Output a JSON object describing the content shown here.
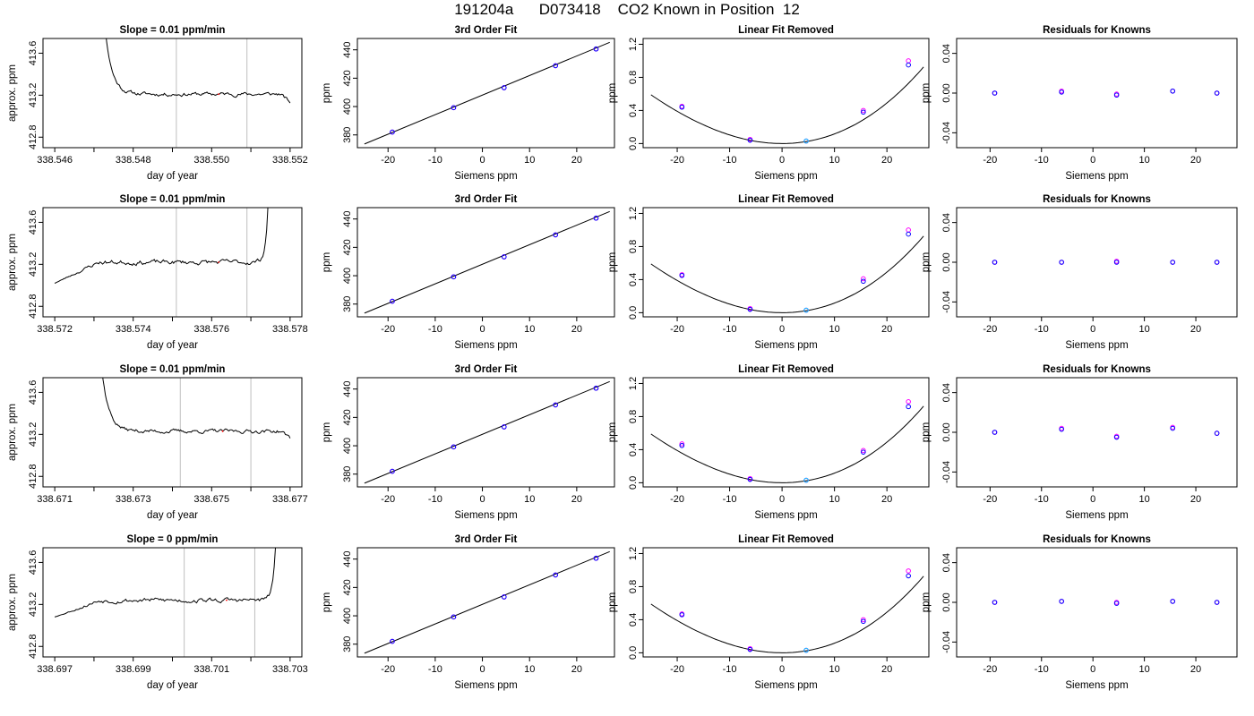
{
  "page_title": "191204a      D073418    CO2 Known in Position  12",
  "colors": {
    "trace": "#000000",
    "guide_line": "#bebebe",
    "std_point_blue": "#0000ff",
    "std_point_magenta": "#ff00ff",
    "std_point_cyan": "#00bfff",
    "marker_red": "#ff0000"
  },
  "chart_data": [
    {
      "type": "line",
      "row": 0,
      "col": 0,
      "title": "Slope =  0.01  ppm/min",
      "xlabel": "day of year",
      "ylabel": "approx. ppm",
      "xlim": [
        338.5457,
        338.5523
      ],
      "ylim": [
        412.7,
        413.74
      ],
      "xticks": [
        338.546,
        338.547,
        338.548,
        338.549,
        338.55,
        338.551,
        338.552
      ],
      "xtick_labels": [
        "338.546",
        "",
        "338.548",
        "",
        "338.550",
        "",
        "338.552"
      ],
      "yticks": [
        412.8,
        413.2,
        413.6
      ],
      "ytick_labels": [
        "412.8",
        "413.2",
        "413.6"
      ],
      "vlines": [
        338.5491,
        338.5509
      ],
      "trace": {
        "x_start": 338.547,
        "x_end": 338.552,
        "level": 413.21,
        "noise": 0.012,
        "spike_start": true,
        "spike_end": false,
        "end_tail": -0.08,
        "seed": 11
      }
    },
    {
      "type": "scatter",
      "row": 0,
      "col": 1,
      "title": "3rd Order Fit",
      "xlabel": "Siemens ppm",
      "ylabel": "ppm",
      "xlim": [
        -26.5,
        28
      ],
      "ylim": [
        371,
        448
      ],
      "xticks": [
        -20,
        -10,
        0,
        10,
        20
      ],
      "xtick_labels": [
        "-20",
        "-10",
        "0",
        "10",
        "20"
      ],
      "yticks": [
        380,
        400,
        420,
        440
      ],
      "ytick_labels": [
        "380",
        "400",
        "420",
        "440"
      ],
      "fit_line": {
        "x": [
          -25,
          27
        ],
        "y": [
          373.6,
          445.3
        ]
      },
      "points_blue": {
        "x": [
          -19.1,
          -6.1,
          4.6,
          15.5,
          24.1
        ],
        "y": [
          382.0,
          399.2,
          413.3,
          428.8,
          440.6
        ]
      },
      "points_magenta": {
        "x": [
          -19.1,
          -6.1,
          4.6,
          15.5,
          24.1
        ],
        "y": [
          382.0,
          399.2,
          413.3,
          428.8,
          440.6
        ]
      }
    },
    {
      "type": "scatter",
      "row": 0,
      "col": 2,
      "title": "Linear Fit Removed",
      "xlabel": "Siemens ppm",
      "ylabel": "ppm",
      "xlim": [
        -26.5,
        28
      ],
      "ylim": [
        -0.05,
        1.27
      ],
      "xticks": [
        -20,
        -10,
        0,
        10,
        20
      ],
      "xtick_labels": [
        "-20",
        "-10",
        "0",
        "10",
        "20"
      ],
      "yticks": [
        0,
        0.4,
        0.8,
        1.2
      ],
      "ytick_labels": [
        "0.0",
        "0.4",
        "0.8",
        "1.2"
      ],
      "curve": {
        "a": 0.0011,
        "b": 0.0124,
        "c": 6.3e-06,
        "x_from": -25,
        "x_to": 27
      },
      "points_blue": {
        "x": [
          -19.1,
          -6.1,
          4.6,
          15.5,
          24.1
        ],
        "y": [
          0.44,
          0.04,
          0.03,
          0.38,
          0.95
        ]
      },
      "points_magenta": {
        "x": [
          -19.1,
          -6.1,
          4.6,
          15.5,
          24.1
        ],
        "y": [
          0.45,
          0.05,
          0.03,
          0.4,
          1.0
        ]
      }
    },
    {
      "type": "scatter",
      "row": 0,
      "col": 3,
      "title": "Residuals for Knowns",
      "xlabel": "Siemens ppm",
      "ylabel": "ppm",
      "xlim": [
        -26.5,
        28
      ],
      "ylim": [
        -0.055,
        0.055
      ],
      "xticks": [
        -20,
        -10,
        0,
        10,
        20
      ],
      "xtick_labels": [
        "-20",
        "-10",
        "0",
        "10",
        "20"
      ],
      "yticks": [
        -0.04,
        0,
        0.04
      ],
      "ytick_labels": [
        "-0.04",
        "0.00",
        "0.04"
      ],
      "points_blue": {
        "x": [
          -19.1,
          -6.1,
          4.6,
          15.5,
          24.1
        ],
        "y": [
          0.0,
          0.001,
          -0.002,
          0.002,
          0.0
        ]
      },
      "points_magenta": {
        "x": [
          -19.1,
          -6.1,
          4.6,
          15.5,
          24.1
        ],
        "y": [
          0.0,
          0.002,
          -0.001,
          0.002,
          0.0
        ]
      }
    },
    {
      "type": "line",
      "row": 1,
      "col": 0,
      "title": "Slope =  0.01  ppm/min",
      "xlabel": "day of year",
      "ylabel": "approx. ppm",
      "xlim": [
        338.5717,
        338.5783
      ],
      "ylim": [
        412.7,
        413.74
      ],
      "xticks": [
        338.572,
        338.573,
        338.574,
        338.575,
        338.576,
        338.577,
        338.578
      ],
      "xtick_labels": [
        "338.572",
        "",
        "338.574",
        "",
        "338.576",
        "",
        "338.578"
      ],
      "yticks": [
        412.8,
        413.2,
        413.6
      ],
      "ytick_labels": [
        "412.8",
        "413.2",
        "413.6"
      ],
      "vlines": [
        338.5751,
        338.5769
      ],
      "trace": {
        "x_start": 338.572,
        "x_end": 338.5776,
        "level": 413.22,
        "noise": 0.015,
        "spike_start": false,
        "spike_end": true,
        "start_level": 413.02,
        "seed": 23
      }
    },
    {
      "type": "scatter",
      "row": 1,
      "col": 1,
      "title": "3rd Order Fit",
      "xlabel": "Siemens ppm",
      "ylabel": "ppm",
      "xlim": [
        -26.5,
        28
      ],
      "ylim": [
        371,
        448
      ],
      "xticks": [
        -20,
        -10,
        0,
        10,
        20
      ],
      "xtick_labels": [
        "-20",
        "-10",
        "0",
        "10",
        "20"
      ],
      "yticks": [
        380,
        400,
        420,
        440
      ],
      "ytick_labels": [
        "380",
        "400",
        "420",
        "440"
      ],
      "fit_line": {
        "x": [
          -25,
          27
        ],
        "y": [
          373.6,
          445.3
        ]
      },
      "points_blue": {
        "x": [
          -19.1,
          -6.1,
          4.6,
          15.5,
          24.1
        ],
        "y": [
          382.0,
          399.2,
          413.3,
          428.8,
          440.6
        ]
      },
      "points_magenta": {
        "x": [
          -19.1,
          -6.1,
          4.6,
          15.5,
          24.1
        ],
        "y": [
          382.0,
          399.2,
          413.3,
          428.8,
          440.6
        ]
      }
    },
    {
      "type": "scatter",
      "row": 1,
      "col": 2,
      "title": "Linear Fit Removed",
      "xlabel": "Siemens ppm",
      "ylabel": "ppm",
      "xlim": [
        -26.5,
        28
      ],
      "ylim": [
        -0.05,
        1.27
      ],
      "xticks": [
        -20,
        -10,
        0,
        10,
        20
      ],
      "xtick_labels": [
        "-20",
        "-10",
        "0",
        "10",
        "20"
      ],
      "yticks": [
        0,
        0.4,
        0.8,
        1.2
      ],
      "ytick_labels": [
        "0.0",
        "0.4",
        "0.8",
        "1.2"
      ],
      "curve": {
        "a": 0.0011,
        "b": 0.0124,
        "c": 6.3e-06,
        "x_from": -25,
        "x_to": 27
      },
      "points_blue": {
        "x": [
          -19.1,
          -6.1,
          4.6,
          15.5,
          24.1
        ],
        "y": [
          0.45,
          0.04,
          0.03,
          0.38,
          0.95
        ]
      },
      "points_magenta": {
        "x": [
          -19.1,
          -6.1,
          4.6,
          15.5,
          24.1
        ],
        "y": [
          0.46,
          0.05,
          0.03,
          0.41,
          1.0
        ]
      }
    },
    {
      "type": "scatter",
      "row": 1,
      "col": 3,
      "title": "Residuals for Knowns",
      "xlabel": "Siemens ppm",
      "ylabel": "ppm",
      "xlim": [
        -26.5,
        28
      ],
      "ylim": [
        -0.055,
        0.055
      ],
      "xticks": [
        -20,
        -10,
        0,
        10,
        20
      ],
      "xtick_labels": [
        "-20",
        "-10",
        "0",
        "10",
        "20"
      ],
      "yticks": [
        -0.04,
        0,
        0.04
      ],
      "ytick_labels": [
        "-0.04",
        "0.00",
        "0.04"
      ],
      "points_blue": {
        "x": [
          -19.1,
          -6.1,
          4.6,
          15.5,
          24.1
        ],
        "y": [
          0.0,
          0.0,
          0.0,
          0.0,
          0.0
        ]
      },
      "points_magenta": {
        "x": [
          -19.1,
          -6.1,
          4.6,
          15.5,
          24.1
        ],
        "y": [
          0.0,
          0.0,
          0.001,
          0.0,
          0.0
        ]
      }
    },
    {
      "type": "line",
      "row": 2,
      "col": 0,
      "title": "Slope =  0.01  ppm/min",
      "xlabel": "day of year",
      "ylabel": "approx. ppm",
      "xlim": [
        338.6707,
        338.6773
      ],
      "ylim": [
        412.7,
        413.74
      ],
      "xticks": [
        338.671,
        338.672,
        338.673,
        338.674,
        338.675,
        338.676,
        338.677
      ],
      "xtick_labels": [
        "338.671",
        "",
        "338.673",
        "",
        "338.675",
        "",
        "338.677"
      ],
      "yticks": [
        412.8,
        413.2,
        413.6
      ],
      "ytick_labels": [
        "412.8",
        "413.2",
        "413.6"
      ],
      "vlines": [
        338.6742,
        338.676
      ],
      "trace": {
        "x_start": 338.6719,
        "x_end": 338.677,
        "level": 413.23,
        "noise": 0.012,
        "spike_start": true,
        "spike_end": false,
        "end_tail": -0.06,
        "seed": 37
      }
    },
    {
      "type": "scatter",
      "row": 2,
      "col": 1,
      "title": "3rd Order Fit",
      "xlabel": "Siemens ppm",
      "ylabel": "ppm",
      "xlim": [
        -26.5,
        28
      ],
      "ylim": [
        371,
        448
      ],
      "xticks": [
        -20,
        -10,
        0,
        10,
        20
      ],
      "xtick_labels": [
        "-20",
        "-10",
        "0",
        "10",
        "20"
      ],
      "yticks": [
        380,
        400,
        420,
        440
      ],
      "ytick_labels": [
        "380",
        "400",
        "420",
        "440"
      ],
      "fit_line": {
        "x": [
          -25,
          27
        ],
        "y": [
          373.6,
          445.3
        ]
      },
      "points_blue": {
        "x": [
          -19.1,
          -6.1,
          4.6,
          15.5,
          24.1
        ],
        "y": [
          382.0,
          399.2,
          413.3,
          428.8,
          440.6
        ]
      },
      "points_magenta": {
        "x": [
          -19.1,
          -6.1,
          4.6,
          15.5,
          24.1
        ],
        "y": [
          382.0,
          399.2,
          413.3,
          428.8,
          440.6
        ]
      }
    },
    {
      "type": "scatter",
      "row": 2,
      "col": 2,
      "title": "Linear Fit Removed",
      "xlabel": "Siemens ppm",
      "ylabel": "ppm",
      "xlim": [
        -26.5,
        28
      ],
      "ylim": [
        -0.05,
        1.27
      ],
      "xticks": [
        -20,
        -10,
        0,
        10,
        20
      ],
      "xtick_labels": [
        "-20",
        "-10",
        "0",
        "10",
        "20"
      ],
      "yticks": [
        0,
        0.4,
        0.8,
        1.2
      ],
      "ytick_labels": [
        "0.0",
        "0.4",
        "0.8",
        "1.2"
      ],
      "curve": {
        "a": 0.0011,
        "b": 0.0124,
        "c": 6.3e-06,
        "x_from": -25,
        "x_to": 27
      },
      "points_blue": {
        "x": [
          -19.1,
          -6.1,
          4.6,
          15.5,
          24.1
        ],
        "y": [
          0.45,
          0.04,
          0.03,
          0.37,
          0.92
        ]
      },
      "points_magenta": {
        "x": [
          -19.1,
          -6.1,
          4.6,
          15.5,
          24.1
        ],
        "y": [
          0.47,
          0.05,
          0.03,
          0.39,
          0.98
        ]
      }
    },
    {
      "type": "scatter",
      "row": 2,
      "col": 3,
      "title": "Residuals for Knowns",
      "xlabel": "Siemens ppm",
      "ylabel": "ppm",
      "xlim": [
        -26.5,
        28
      ],
      "ylim": [
        -0.055,
        0.055
      ],
      "xticks": [
        -20,
        -10,
        0,
        10,
        20
      ],
      "xtick_labels": [
        "-20",
        "-10",
        "0",
        "10",
        "20"
      ],
      "yticks": [
        -0.04,
        0,
        0.04
      ],
      "ytick_labels": [
        "-0.04",
        "0.00",
        "0.04"
      ],
      "points_blue": {
        "x": [
          -19.1,
          -6.1,
          4.6,
          15.5,
          24.1
        ],
        "y": [
          0.0,
          0.003,
          -0.005,
          0.004,
          -0.001
        ]
      },
      "points_magenta": {
        "x": [
          -19.1,
          -6.1,
          4.6,
          15.5,
          24.1
        ],
        "y": [
          0.0,
          0.004,
          -0.004,
          0.005,
          -0.001
        ]
      }
    },
    {
      "type": "line",
      "row": 3,
      "col": 0,
      "title": "Slope =  0  ppm/min",
      "xlabel": "day of year",
      "ylabel": "approx. ppm",
      "xlim": [
        338.6967,
        338.7033
      ],
      "ylim": [
        412.7,
        413.74
      ],
      "xticks": [
        338.697,
        338.698,
        338.699,
        338.7,
        338.701,
        338.702,
        338.703
      ],
      "xtick_labels": [
        "338.697",
        "",
        "338.699",
        "",
        "338.701",
        "",
        "338.703"
      ],
      "yticks": [
        412.8,
        413.2,
        413.6
      ],
      "ytick_labels": [
        "412.8",
        "413.2",
        "413.6"
      ],
      "vlines": [
        338.7003,
        338.7021
      ],
      "trace": {
        "x_start": 338.697,
        "x_end": 338.7028,
        "level": 413.24,
        "noise": 0.015,
        "spike_start": false,
        "spike_end": true,
        "start_level": 413.08,
        "seed": 53
      }
    },
    {
      "type": "scatter",
      "row": 3,
      "col": 1,
      "title": "3rd Order Fit",
      "xlabel": "Siemens ppm",
      "ylabel": "ppm",
      "xlim": [
        -26.5,
        28
      ],
      "ylim": [
        371,
        448
      ],
      "xticks": [
        -20,
        -10,
        0,
        10,
        20
      ],
      "xtick_labels": [
        "-20",
        "-10",
        "0",
        "10",
        "20"
      ],
      "yticks": [
        380,
        400,
        420,
        440
      ],
      "ytick_labels": [
        "380",
        "400",
        "420",
        "440"
      ],
      "fit_line": {
        "x": [
          -25,
          27
        ],
        "y": [
          373.6,
          445.3
        ]
      },
      "points_blue": {
        "x": [
          -19.1,
          -6.1,
          4.6,
          15.5,
          24.1
        ],
        "y": [
          382.0,
          399.2,
          413.3,
          428.8,
          440.6
        ]
      },
      "points_magenta": {
        "x": [
          -19.1,
          -6.1,
          4.6,
          15.5,
          24.1
        ],
        "y": [
          382.0,
          399.2,
          413.3,
          428.8,
          440.6
        ]
      }
    },
    {
      "type": "scatter",
      "row": 3,
      "col": 2,
      "title": "Linear Fit Removed",
      "xlabel": "Siemens ppm",
      "ylabel": "ppm",
      "xlim": [
        -26.5,
        28
      ],
      "ylim": [
        -0.05,
        1.27
      ],
      "xticks": [
        -20,
        -10,
        0,
        10,
        20
      ],
      "xtick_labels": [
        "-20",
        "-10",
        "0",
        "10",
        "20"
      ],
      "yticks": [
        0,
        0.4,
        0.8,
        1.2
      ],
      "ytick_labels": [
        "0.0",
        "0.4",
        "0.8",
        "1.2"
      ],
      "curve": {
        "a": 0.0011,
        "b": 0.0124,
        "c": 6.3e-06,
        "x_from": -25,
        "x_to": 27
      },
      "points_blue": {
        "x": [
          -19.1,
          -6.1,
          4.6,
          15.5,
          24.1
        ],
        "y": [
          0.46,
          0.04,
          0.03,
          0.38,
          0.93
        ]
      },
      "points_magenta": {
        "x": [
          -19.1,
          -6.1,
          4.6,
          15.5,
          24.1
        ],
        "y": [
          0.47,
          0.05,
          0.03,
          0.4,
          0.99
        ]
      }
    },
    {
      "type": "scatter",
      "row": 3,
      "col": 3,
      "title": "Residuals for Knowns",
      "xlabel": "Siemens ppm",
      "ylabel": "ppm",
      "xlim": [
        -26.5,
        28
      ],
      "ylim": [
        -0.055,
        0.055
      ],
      "xticks": [
        -20,
        -10,
        0,
        10,
        20
      ],
      "xtick_labels": [
        "-20",
        "-10",
        "0",
        "10",
        "20"
      ],
      "yticks": [
        -0.04,
        0,
        0.04
      ],
      "ytick_labels": [
        "-0.04",
        "0.00",
        "0.04"
      ],
      "points_blue": {
        "x": [
          -19.1,
          -6.1,
          4.6,
          15.5,
          24.1
        ],
        "y": [
          0.0,
          0.001,
          -0.001,
          0.001,
          0.0
        ]
      },
      "points_magenta": {
        "x": [
          -19.1,
          -6.1,
          4.6,
          15.5,
          24.1
        ],
        "y": [
          0.0,
          0.001,
          0.0,
          0.001,
          0.0
        ]
      }
    }
  ]
}
